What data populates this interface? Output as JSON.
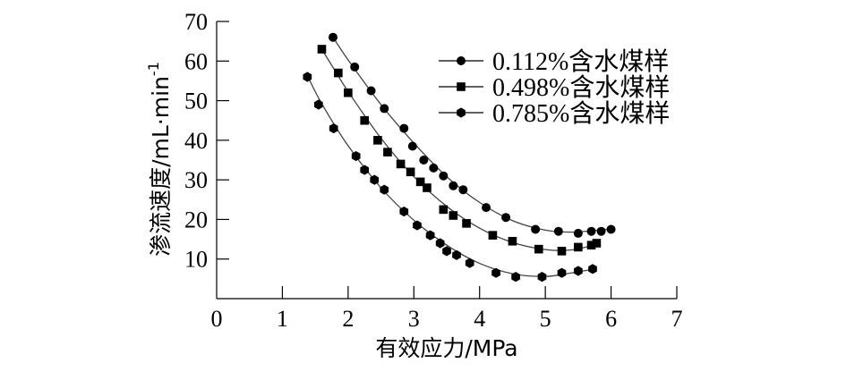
{
  "chart_data": {
    "type": "scatter",
    "xlabel": "有效应力/MPa",
    "ylabel": "渗流速度/mL·min",
    "ylabel_superscript": "-1",
    "xlim": [
      0,
      7
    ],
    "ylim": [
      0,
      70
    ],
    "x_ticks": [
      0,
      1,
      2,
      3,
      4,
      5,
      6,
      7
    ],
    "y_ticks": [
      10,
      20,
      30,
      40,
      50,
      60,
      70
    ],
    "grid": false,
    "legend_position": "top-right",
    "series": [
      {
        "name": "0.112%含水煤样",
        "marker": "circle",
        "points": [
          [
            1.77,
            66
          ],
          [
            2.1,
            58.5
          ],
          [
            2.35,
            52.5
          ],
          [
            2.55,
            48
          ],
          [
            2.85,
            43
          ],
          [
            2.98,
            38.5
          ],
          [
            3.15,
            35
          ],
          [
            3.3,
            33
          ],
          [
            3.45,
            31
          ],
          [
            3.6,
            28.5
          ],
          [
            3.75,
            27.5
          ],
          [
            4.1,
            23
          ],
          [
            4.4,
            20.5
          ],
          [
            4.85,
            17.5
          ],
          [
            5.2,
            17
          ],
          [
            5.5,
            16.5
          ],
          [
            5.7,
            17
          ],
          [
            5.85,
            17
          ],
          [
            6.0,
            17.5
          ]
        ],
        "curve": [
          [
            1.75,
            66.5
          ],
          [
            2.0,
            60.3
          ],
          [
            2.5,
            49
          ],
          [
            3.0,
            39.3
          ],
          [
            3.5,
            30.8
          ],
          [
            4.0,
            24.3
          ],
          [
            4.5,
            19.7
          ],
          [
            5.0,
            17.3
          ],
          [
            5.4,
            16.8
          ],
          [
            5.8,
            17.3
          ],
          [
            6.05,
            17.7
          ]
        ]
      },
      {
        "name": "0.498%含水煤样",
        "marker": "square",
        "points": [
          [
            1.6,
            63
          ],
          [
            1.85,
            57
          ],
          [
            2.0,
            52
          ],
          [
            2.25,
            45
          ],
          [
            2.45,
            40
          ],
          [
            2.6,
            37
          ],
          [
            2.8,
            34
          ],
          [
            2.95,
            32
          ],
          [
            3.1,
            29.5
          ],
          [
            3.2,
            28
          ],
          [
            3.45,
            22.5
          ],
          [
            3.6,
            21
          ],
          [
            3.8,
            19
          ],
          [
            4.2,
            16
          ],
          [
            4.5,
            14.5
          ],
          [
            4.9,
            12.5
          ],
          [
            5.25,
            12
          ],
          [
            5.5,
            13
          ],
          [
            5.7,
            13.5
          ],
          [
            5.78,
            14
          ]
        ],
        "curve": [
          [
            1.58,
            63.5
          ],
          [
            1.8,
            57.6
          ],
          [
            2.0,
            52.3
          ],
          [
            2.5,
            40.5
          ],
          [
            3.0,
            30.8
          ],
          [
            3.5,
            23.3
          ],
          [
            4.0,
            17.8
          ],
          [
            4.5,
            14.2
          ],
          [
            5.0,
            12.4
          ],
          [
            5.4,
            12.3
          ],
          [
            5.8,
            13.8
          ]
        ]
      },
      {
        "name": "0.785%含水煤样",
        "marker": "hexagon",
        "points": [
          [
            1.38,
            56
          ],
          [
            1.55,
            49
          ],
          [
            1.78,
            43
          ],
          [
            2.12,
            36
          ],
          [
            2.25,
            32.5
          ],
          [
            2.4,
            30
          ],
          [
            2.55,
            27.5
          ],
          [
            2.85,
            22
          ],
          [
            3.05,
            18.5
          ],
          [
            3.25,
            16
          ],
          [
            3.4,
            14
          ],
          [
            3.5,
            12
          ],
          [
            3.65,
            11
          ],
          [
            3.85,
            9
          ],
          [
            4.25,
            6.5
          ],
          [
            4.55,
            5.5
          ],
          [
            4.95,
            5.5
          ],
          [
            5.25,
            6.5
          ],
          [
            5.5,
            7
          ],
          [
            5.72,
            7.5
          ]
        ],
        "curve": [
          [
            1.38,
            56.3
          ],
          [
            1.6,
            49.2
          ],
          [
            2.0,
            38.6
          ],
          [
            2.5,
            28
          ],
          [
            3.0,
            19.8
          ],
          [
            3.5,
            13.5
          ],
          [
            4.0,
            8.9
          ],
          [
            4.5,
            6.3
          ],
          [
            5.0,
            5.6
          ],
          [
            5.4,
            6.5
          ],
          [
            5.75,
            7.5
          ]
        ]
      }
    ]
  }
}
